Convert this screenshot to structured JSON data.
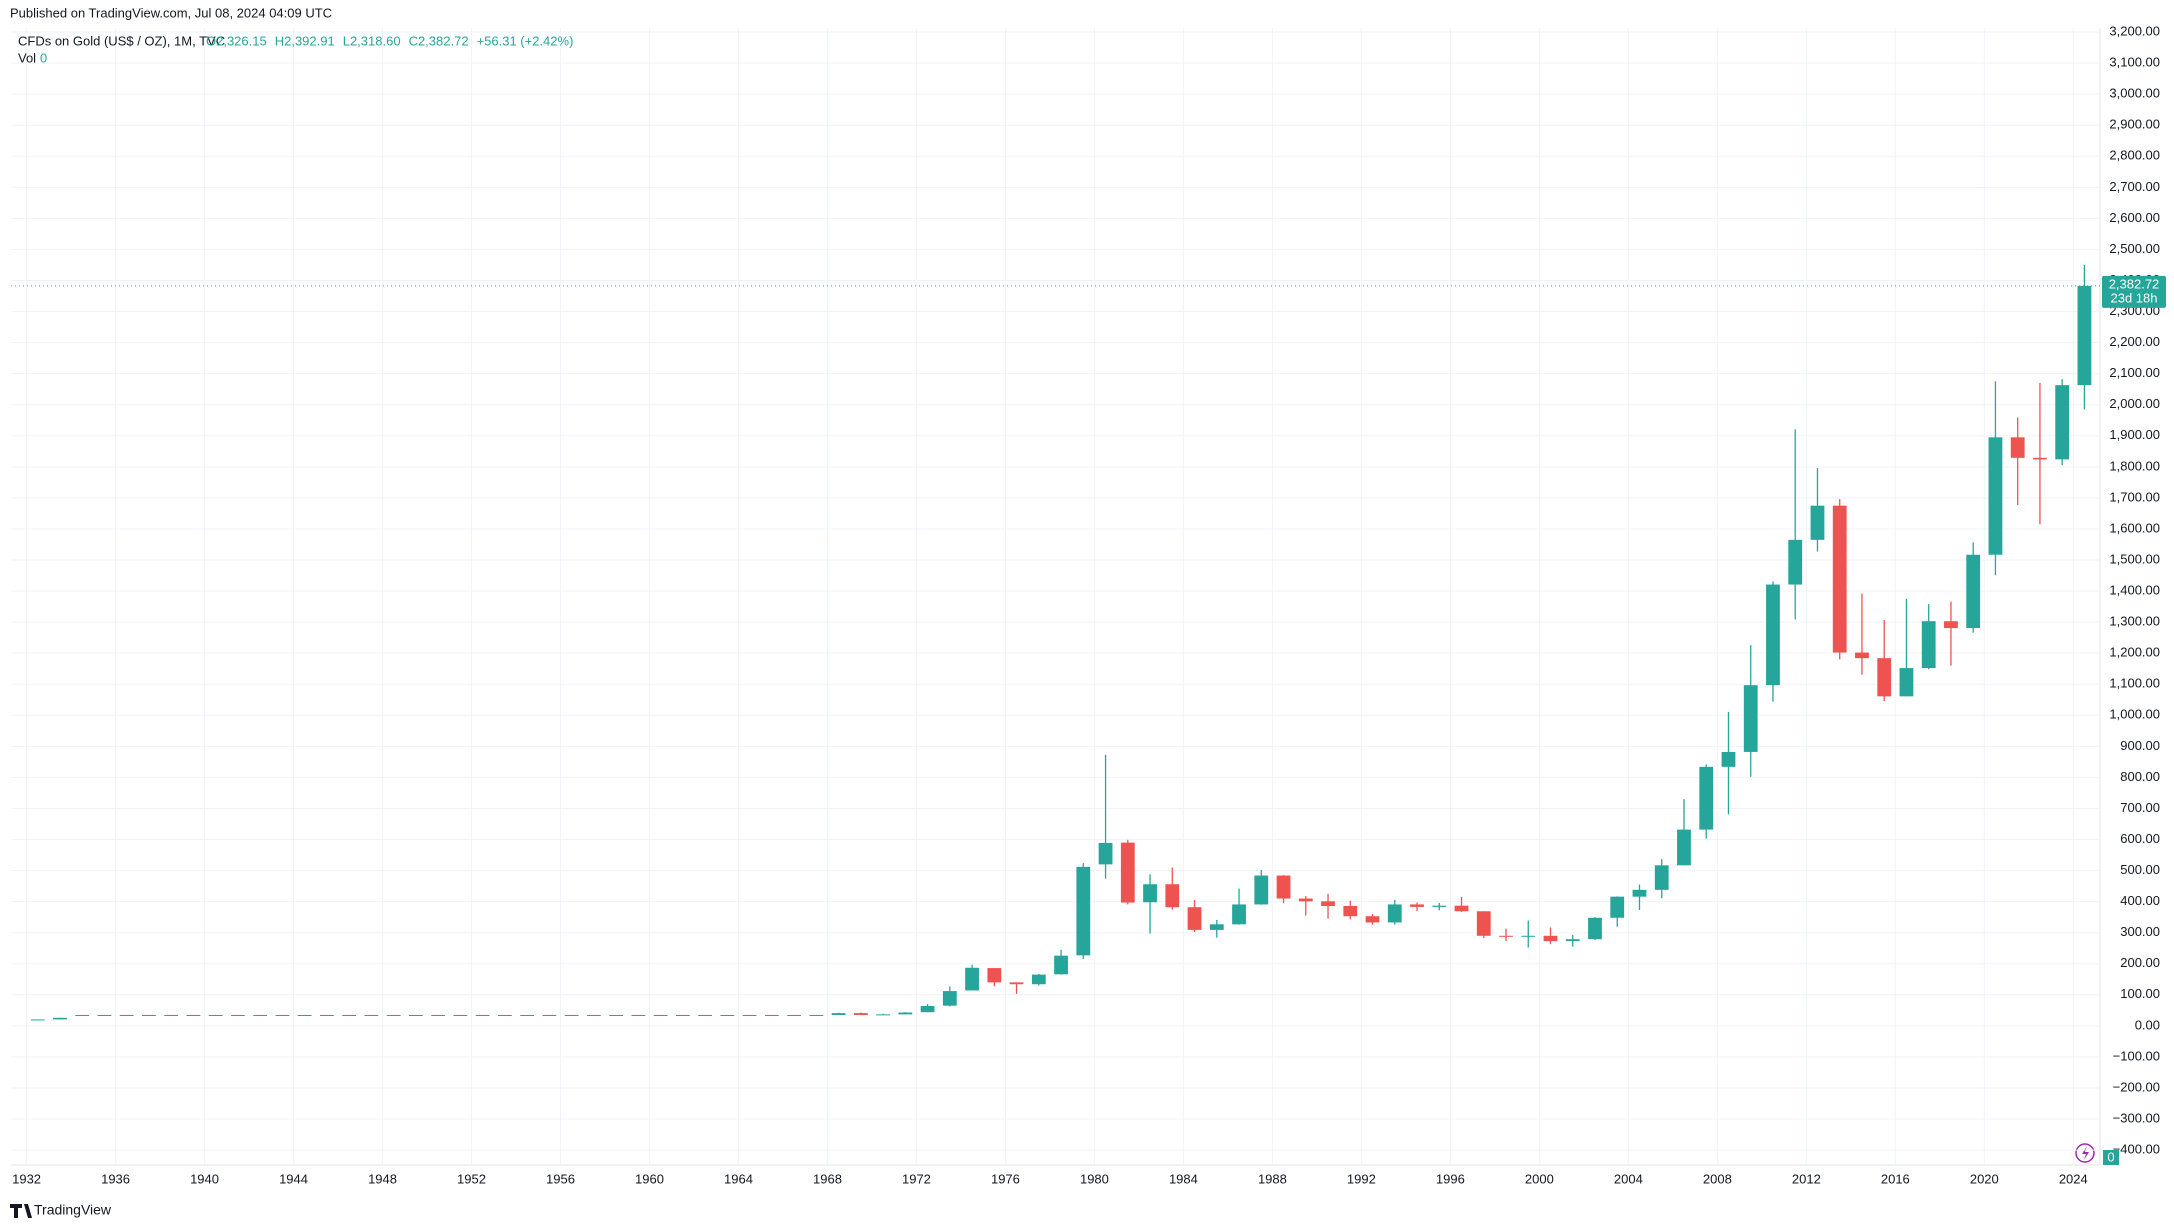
{
  "header": {
    "published": "Published on TradingView.com, Jul 08, 2024 04:09 UTC"
  },
  "chart_data": {
    "type": "candlestick",
    "title": "CFDs on Gold (US$ / OZ), 1M, TVC",
    "legend_values": [
      "O2,326.15",
      "H2,392.91",
      "L2,318.60",
      "C2,382.72",
      "+56.31 (+2.42%)"
    ],
    "volume_label": "Vol",
    "volume_value": 0,
    "x": [
      1932,
      1933,
      1934,
      1935,
      1936,
      1937,
      1938,
      1939,
      1940,
      1941,
      1942,
      1943,
      1944,
      1945,
      1946,
      1947,
      1948,
      1949,
      1950,
      1951,
      1952,
      1953,
      1954,
      1955,
      1956,
      1957,
      1958,
      1959,
      1960,
      1961,
      1962,
      1963,
      1964,
      1965,
      1966,
      1967,
      1968,
      1969,
      1970,
      1971,
      1972,
      1973,
      1974,
      1975,
      1976,
      1977,
      1978,
      1979,
      1980,
      1981,
      1982,
      1983,
      1984,
      1985,
      1986,
      1987,
      1988,
      1989,
      1990,
      1991,
      1992,
      1993,
      1994,
      1995,
      1996,
      1997,
      1998,
      1999,
      2000,
      2001,
      2002,
      2003,
      2004,
      2005,
      2006,
      2007,
      2008,
      2009,
      2010,
      2011,
      2012,
      2013,
      2014,
      2015,
      2016,
      2017,
      2018,
      2019,
      2020,
      2021,
      2022,
      2023,
      2024
    ],
    "open": [
      20.7,
      20.7,
      35,
      35,
      35,
      35,
      35,
      35,
      35,
      35,
      35,
      35,
      35,
      35,
      35,
      35,
      35,
      35,
      35,
      35,
      35,
      35,
      35,
      35,
      35,
      35,
      35,
      35,
      35,
      35,
      35,
      35,
      35,
      35,
      35,
      35,
      35,
      41,
      35,
      37,
      44,
      65,
      114,
      186,
      140,
      134,
      166,
      227,
      520,
      590,
      398,
      456,
      382,
      309,
      327,
      391,
      484,
      410,
      401,
      386,
      353,
      333,
      391,
      383,
      387,
      369,
      290,
      288,
      290,
      273,
      279,
      348,
      416,
      438,
      517,
      632,
      834,
      882,
      1097,
      1421,
      1565,
      1675,
      1202,
      1184,
      1061,
      1152,
      1303,
      1281,
      1517,
      1895,
      1829,
      1824,
      2063
    ],
    "high": [
      20.7,
      26,
      35.2,
      35.2,
      35.2,
      35.2,
      35.2,
      35.2,
      35.2,
      35.2,
      35.2,
      35.2,
      35.2,
      35.2,
      35.2,
      35.2,
      35.2,
      35.2,
      35.2,
      35.2,
      35.2,
      35.2,
      35.2,
      35.2,
      35.2,
      35.2,
      35.2,
      35.2,
      35.2,
      35.2,
      35.2,
      35.2,
      35.2,
      35.2,
      35.2,
      35.2,
      42,
      43,
      39,
      44,
      70,
      127,
      197,
      186,
      140,
      167,
      245,
      524,
      873,
      599,
      488,
      510,
      406,
      341,
      442,
      502,
      485,
      418,
      425,
      403,
      360,
      406,
      397,
      396,
      415,
      369,
      313,
      339,
      317,
      293,
      350,
      417,
      455,
      537,
      730,
      842,
      1011,
      1226,
      1431,
      1921,
      1796,
      1696,
      1392,
      1307,
      1375,
      1358,
      1366,
      1557,
      2075,
      1959,
      2070,
      2082,
      2450
    ],
    "low": [
      20.6,
      20.6,
      34.8,
      34.8,
      34.8,
      34.8,
      34.8,
      34.8,
      34.8,
      34.8,
      34.8,
      34.8,
      34.8,
      34.8,
      34.8,
      34.8,
      34.8,
      34.8,
      34.8,
      34.8,
      34.8,
      34.8,
      34.8,
      34.8,
      34.8,
      34.8,
      34.8,
      34.8,
      34.8,
      34.8,
      34.8,
      34.8,
      34.8,
      34.8,
      34.8,
      34.8,
      35,
      35,
      35,
      37,
      44,
      63,
      114,
      128,
      103,
      130,
      165,
      215,
      474,
      391,
      297,
      374,
      302,
      284,
      326,
      390,
      395,
      355,
      345,
      343,
      326,
      326,
      370,
      372,
      367,
      283,
      273,
      252,
      263,
      255,
      277,
      319,
      373,
      411,
      517,
      603,
      681,
      802,
      1044,
      1308,
      1527,
      1180,
      1131,
      1046,
      1061,
      1148,
      1160,
      1266,
      1451,
      1677,
      1615,
      1805,
      1985
    ],
    "close": [
      20.7,
      26,
      35,
      35,
      35,
      35,
      35,
      35,
      35,
      35,
      35,
      35,
      35,
      35,
      35,
      35,
      35,
      35,
      35,
      35,
      35,
      35,
      35,
      35,
      35,
      35,
      35,
      35,
      35,
      35,
      35,
      35,
      35,
      35,
      35,
      35,
      41,
      35,
      37,
      43,
      64,
      112,
      187,
      140,
      134,
      165,
      226,
      512,
      589,
      397,
      456,
      382,
      309,
      327,
      391,
      484,
      410,
      401,
      386,
      353,
      333,
      391,
      383,
      387,
      369,
      290,
      288,
      290,
      273,
      279,
      348,
      416,
      438,
      517,
      632,
      834,
      882,
      1097,
      1421,
      1565,
      1675,
      1202,
      1184,
      1061,
      1152,
      1303,
      1281,
      1517,
      1895,
      1829,
      1824,
      2063,
      2382.72
    ],
    "up_color": "#26a69a",
    "down_color": "#ef5350",
    "grid": true,
    "xlim": [
      1931.3,
      2025.2
    ],
    "xticks": [
      1932,
      1936,
      1940,
      1944,
      1948,
      1952,
      1956,
      1960,
      1964,
      1968,
      1972,
      1976,
      1980,
      1984,
      1988,
      1992,
      1996,
      2000,
      2004,
      2008,
      2012,
      2016,
      2020,
      2024
    ],
    "ylim": [
      -448,
      3213
    ],
    "yticks": [
      {
        "value": 3200,
        "label": "3,200.00"
      },
      {
        "value": 3100,
        "label": "3,100.00"
      },
      {
        "value": 3000,
        "label": "3,000.00"
      },
      {
        "value": 2900,
        "label": "2,900.00"
      },
      {
        "value": 2800,
        "label": "2,800.00"
      },
      {
        "value": 2700,
        "label": "2,700.00"
      },
      {
        "value": 2600,
        "label": "2,600.00"
      },
      {
        "value": 2500,
        "label": "2,500.00"
      },
      {
        "value": 2400,
        "label": "2,400.00"
      },
      {
        "value": 2300,
        "label": "2,300.00"
      },
      {
        "value": 2200,
        "label": "2,200.00"
      },
      {
        "value": 2100,
        "label": "2,100.00"
      },
      {
        "value": 2000,
        "label": "2,000.00"
      },
      {
        "value": 1900,
        "label": "1,900.00"
      },
      {
        "value": 1800,
        "label": "1,800.00"
      },
      {
        "value": 1700,
        "label": "1,700.00"
      },
      {
        "value": 1600,
        "label": "1,600.00"
      },
      {
        "value": 1500,
        "label": "1,500.00"
      },
      {
        "value": 1400,
        "label": "1,400.00"
      },
      {
        "value": 1300,
        "label": "1,300.00"
      },
      {
        "value": 1200,
        "label": "1,200.00"
      },
      {
        "value": 1100,
        "label": "1,100.00"
      },
      {
        "value": 1000,
        "label": "1,000.00"
      },
      {
        "value": 900,
        "label": "900.00"
      },
      {
        "value": 800,
        "label": "800.00"
      },
      {
        "value": 700,
        "label": "700.00"
      },
      {
        "value": 600,
        "label": "600.00"
      },
      {
        "value": 500,
        "label": "500.00"
      },
      {
        "value": 400,
        "label": "400.00"
      },
      {
        "value": 300,
        "label": "300.00"
      },
      {
        "value": 200,
        "label": "200.00"
      },
      {
        "value": 100,
        "label": "100.00"
      },
      {
        "value": 0,
        "label": "0.00"
      },
      {
        "value": -100,
        "label": "−100.00"
      },
      {
        "value": -200,
        "label": "−200.00"
      },
      {
        "value": -300,
        "label": "−300.00"
      },
      {
        "value": -400,
        "label": "−400.00"
      }
    ],
    "last_price": {
      "value": 2382.72,
      "label": "2,382.72"
    },
    "countdown": "23d 18h",
    "volume_badge": 0
  },
  "footer": {
    "brand": "TradingView"
  }
}
